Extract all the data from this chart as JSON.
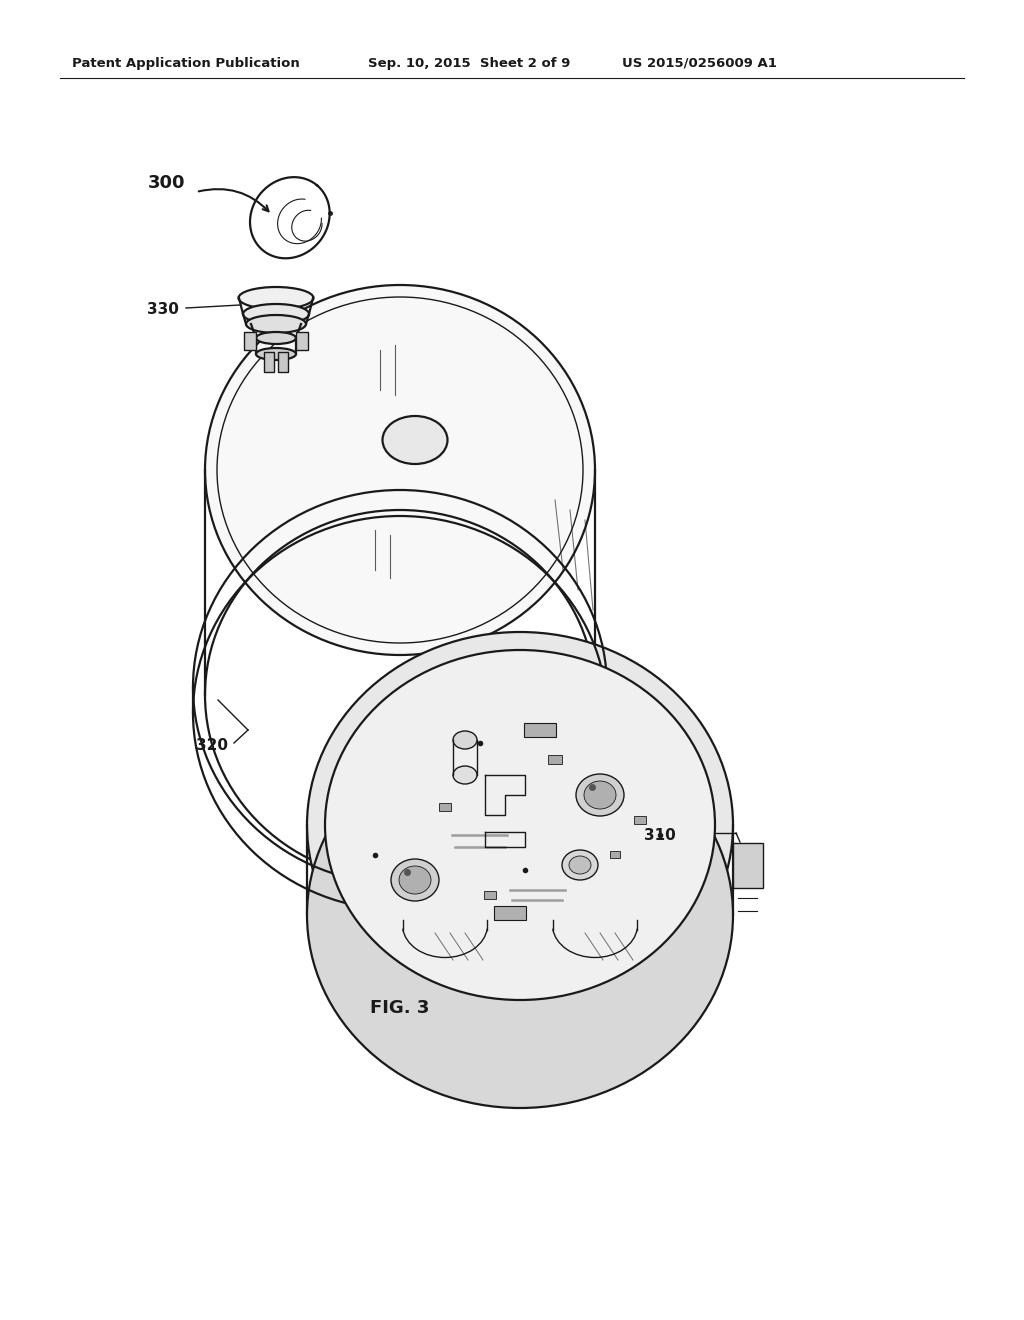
{
  "header_left": "Patent Application Publication",
  "header_mid": "Sep. 10, 2015  Sheet 2 of 9",
  "header_right": "US 2015/0256009 A1",
  "fig_label": "FIG. 3",
  "label_300": "300",
  "label_310": "310",
  "label_320": "320",
  "label_330": "330",
  "bg_color": "#ffffff",
  "lc": "#1a1a1a"
}
